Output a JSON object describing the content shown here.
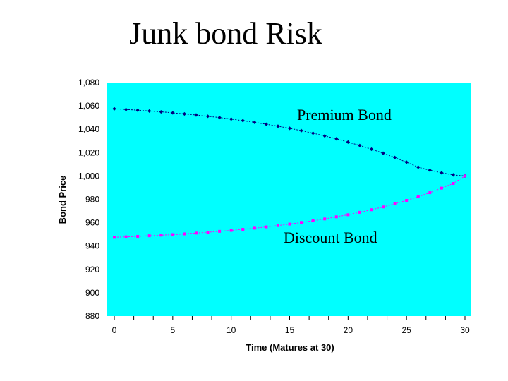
{
  "slide": {
    "title": "Junk bond Risk"
  },
  "chart_data": {
    "type": "line",
    "title": "",
    "xlabel": "Time (Matures at 30)",
    "ylabel": "Bond Price",
    "xlim": [
      0,
      30
    ],
    "ylim": [
      880,
      1080
    ],
    "x_ticks": [
      0,
      5,
      10,
      15,
      20,
      25,
      30
    ],
    "y_ticks": [
      880,
      900,
      920,
      940,
      960,
      980,
      1000,
      1020,
      1040,
      1060,
      1080
    ],
    "y_tick_labels": [
      "880",
      "900",
      "920",
      "940",
      "960",
      "980",
      "1,000",
      "1,020",
      "1,040",
      "1,060",
      "1,080"
    ],
    "x_tick_labels": [
      "0",
      "5",
      "10",
      "15",
      "20",
      "25",
      "30"
    ],
    "plot_background": "#00ffff",
    "grid": false,
    "legend": "none",
    "x": [
      0,
      1,
      2,
      3,
      4,
      5,
      6,
      7,
      8,
      9,
      10,
      11,
      12,
      13,
      14,
      15,
      16,
      17,
      18,
      19,
      20,
      21,
      22,
      23,
      24,
      25,
      26,
      27,
      28,
      29,
      30
    ],
    "series": [
      {
        "name": "Premium Bond",
        "color": "#000080",
        "marker": "diamond",
        "values": [
          1057.5,
          1056.9,
          1056.3,
          1055.6,
          1054.9,
          1054.0,
          1053.1,
          1052.2,
          1051.1,
          1050.0,
          1048.7,
          1047.4,
          1045.9,
          1044.3,
          1042.6,
          1040.8,
          1038.8,
          1036.6,
          1034.3,
          1031.8,
          1029.0,
          1026.1,
          1022.9,
          1019.5,
          1015.8,
          1011.8,
          1007.5,
          1004.9,
          1002.7,
          1000.9,
          1000.0
        ]
      },
      {
        "name": "Discount Bond",
        "color": "#ff00ff",
        "marker": "square",
        "values": [
          947.5,
          947.9,
          948.3,
          948.8,
          949.3,
          949.8,
          950.4,
          951.1,
          951.8,
          952.6,
          953.4,
          954.3,
          955.3,
          956.4,
          957.5,
          958.8,
          960.2,
          961.6,
          963.2,
          965.0,
          966.8,
          968.9,
          971.1,
          973.5,
          976.2,
          979.1,
          982.3,
          985.7,
          989.6,
          993.6,
          1000.0
        ]
      }
    ],
    "annotations": [
      {
        "text": "Premium Bond",
        "x": 21,
        "y": 1055
      },
      {
        "text": "Discount Bond",
        "x": 20,
        "y": 947
      }
    ]
  }
}
